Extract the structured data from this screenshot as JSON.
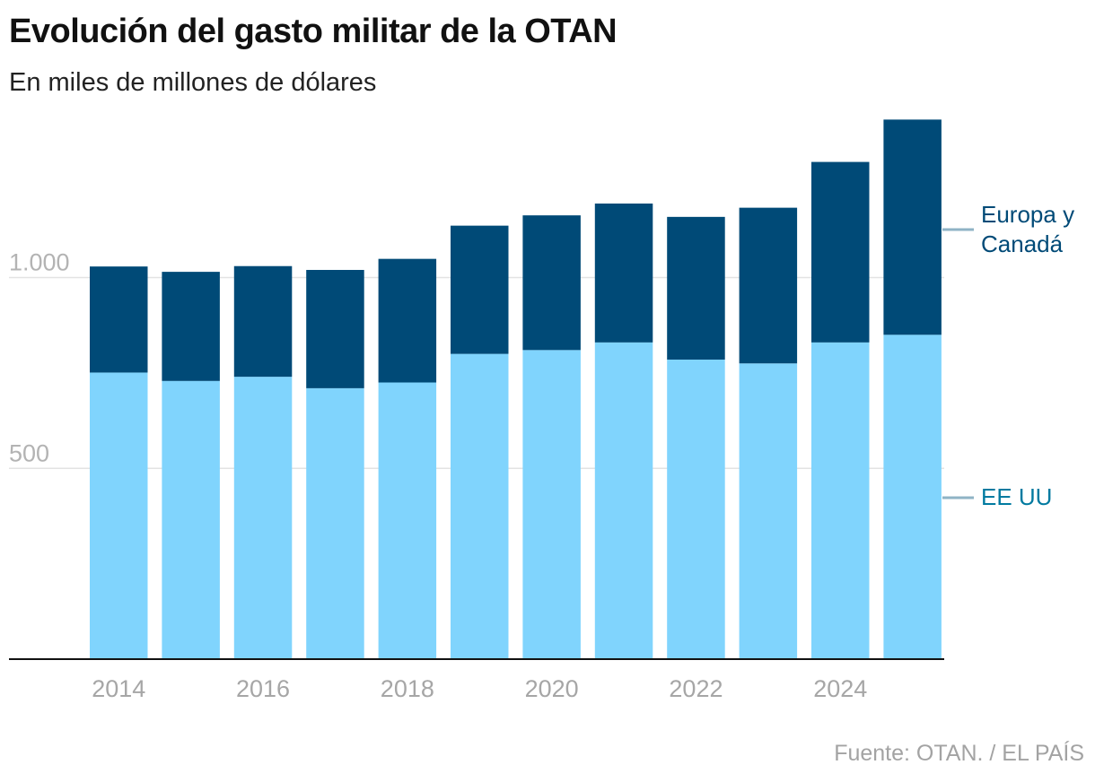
{
  "header": {
    "title": "Evolución del gasto militar de la OTAN",
    "subtitle": "En miles de millones de dólares"
  },
  "footer": {
    "source": "Fuente: OTAN. / EL PAÍS"
  },
  "colors": {
    "us": "#80d4fd",
    "europe_canada": "#004a77",
    "us_label": "#007aa0",
    "europe_label": "#004a77",
    "leader": "#8fb3c6"
  },
  "chart_data": {
    "type": "bar",
    "stacked": true,
    "categories": [
      "2014",
      "2015",
      "2016",
      "2017",
      "2018",
      "2019",
      "2020",
      "2021",
      "2022",
      "2023",
      "2024",
      "2025"
    ],
    "x_tick_labels": [
      "2014",
      "2016",
      "2018",
      "2020",
      "2022",
      "2024"
    ],
    "series": [
      {
        "name": "EE UU",
        "values": [
          751,
          729,
          740,
          710,
          725,
          800,
          810,
          830,
          785,
          775,
          830,
          850
        ]
      },
      {
        "name": "Europa y Canadá",
        "values": [
          278,
          286,
          290,
          310,
          324,
          336,
          353,
          364,
          374,
          408,
          473,
          564
        ]
      }
    ],
    "legend_labels": [
      {
        "series": "Europa y Canadá",
        "lines": [
          "Europa y",
          "Canadá"
        ]
      },
      {
        "series": "EE UU",
        "lines": [
          "EE UU"
        ]
      }
    ],
    "y_ticks": [
      {
        "value": 500,
        "label": "500"
      },
      {
        "value": 1000,
        "label": "1.000"
      }
    ],
    "ylim": [
      0,
      1430
    ],
    "grid": true,
    "legend": "right"
  }
}
